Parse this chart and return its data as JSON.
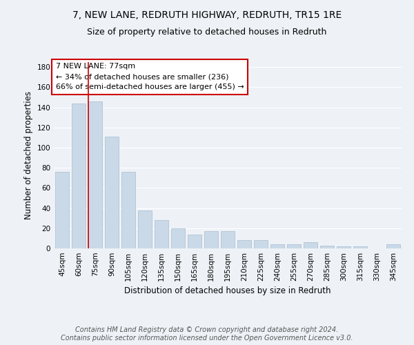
{
  "title_line1": "7, NEW LANE, REDRUTH HIGHWAY, REDRUTH, TR15 1RE",
  "title_line2": "Size of property relative to detached houses in Redruth",
  "xlabel": "Distribution of detached houses by size in Redruth",
  "ylabel": "Number of detached properties",
  "categories": [
    "45sqm",
    "60sqm",
    "75sqm",
    "90sqm",
    "105sqm",
    "120sqm",
    "135sqm",
    "150sqm",
    "165sqm",
    "180sqm",
    "195sqm",
    "210sqm",
    "225sqm",
    "240sqm",
    "255sqm",
    "270sqm",
    "285sqm",
    "300sqm",
    "315sqm",
    "330sqm",
    "345sqm"
  ],
  "values": [
    76,
    144,
    146,
    111,
    76,
    38,
    28,
    20,
    14,
    17,
    17,
    8,
    8,
    4,
    4,
    6,
    3,
    2,
    2,
    0,
    4
  ],
  "bar_color": "#c9d9e8",
  "bar_edge_color": "#aabbcc",
  "bar_width": 0.85,
  "vline_color": "#cc0000",
  "vline_x": 1.6,
  "annotation_text": "7 NEW LANE: 77sqm\n← 34% of detached houses are smaller (236)\n66% of semi-detached houses are larger (455) →",
  "annotation_box_color": "white",
  "annotation_box_edge": "#cc0000",
  "ylim": [
    0,
    185
  ],
  "yticks": [
    0,
    20,
    40,
    60,
    80,
    100,
    120,
    140,
    160,
    180
  ],
  "footer_text": "Contains HM Land Registry data © Crown copyright and database right 2024.\nContains public sector information licensed under the Open Government Licence v3.0.",
  "bg_color": "#eef2f7",
  "plot_bg_color": "#eef2f7",
  "grid_color": "white",
  "title_fontsize": 10,
  "subtitle_fontsize": 9,
  "axis_label_fontsize": 8.5,
  "tick_fontsize": 7.5,
  "annotation_fontsize": 8,
  "footer_fontsize": 7
}
